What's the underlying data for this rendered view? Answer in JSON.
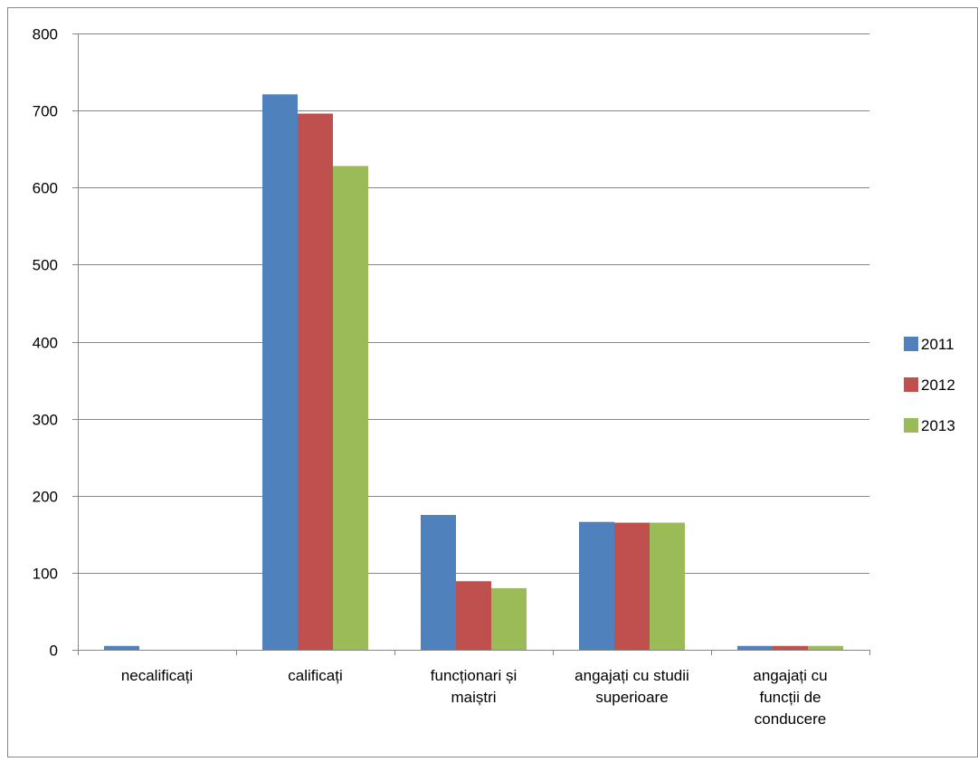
{
  "chart_data": {
    "type": "bar",
    "title": "",
    "xlabel": "",
    "ylabel": "",
    "ylim": [
      0,
      800
    ],
    "yticks": [
      0,
      100,
      200,
      300,
      400,
      500,
      600,
      700,
      800
    ],
    "grid": true,
    "legend_position": "right",
    "categories": [
      [
        "necalificați"
      ],
      [
        "calificați"
      ],
      [
        "funcționari și",
        "maiștri"
      ],
      [
        "angajați cu studii",
        "superioare"
      ],
      [
        "angajați cu",
        "funcții de",
        "conducere"
      ]
    ],
    "series": [
      {
        "name": "2011",
        "color": "#4f81bd",
        "values": [
          5,
          721,
          175,
          166,
          5
        ]
      },
      {
        "name": "2012",
        "color": "#c0504d",
        "values": [
          0,
          696,
          89,
          165,
          5
        ]
      },
      {
        "name": "2013",
        "color": "#9bbb59",
        "values": [
          0,
          628,
          80,
          165,
          5
        ]
      }
    ]
  }
}
